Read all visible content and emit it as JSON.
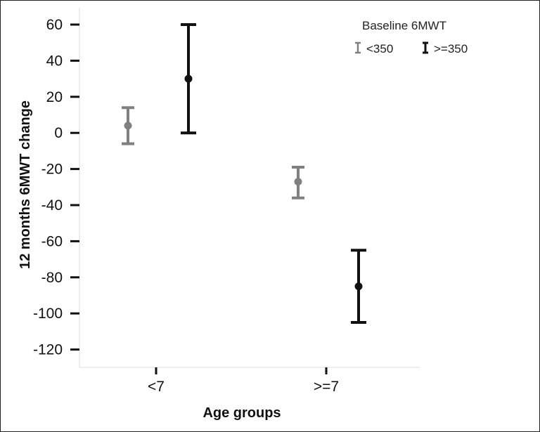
{
  "chart_data": {
    "type": "errorbar",
    "title": "",
    "xlabel": "Age groups",
    "ylabel": "12 months 6MWT change",
    "categories": [
      "<7",
      ">=7"
    ],
    "ylim": [
      -130,
      62
    ],
    "yticks": [
      60,
      40,
      20,
      0,
      -20,
      -40,
      -60,
      -80,
      -100,
      -120
    ],
    "grid": false,
    "legend": {
      "title": "Baseline 6MWT",
      "placement": "top-right"
    },
    "series": [
      {
        "name": "<350",
        "color": "#808080",
        "points": [
          {
            "category": "<7",
            "mean": 4,
            "lower": -6,
            "upper": 14
          },
          {
            "category": ">=7",
            "mean": -27,
            "lower": -36,
            "upper": -19
          }
        ]
      },
      {
        "name": ">=350",
        "color": "#111111",
        "points": [
          {
            "category": "<7",
            "mean": 30,
            "lower": 0,
            "upper": 60
          },
          {
            "category": ">=7",
            "mean": -85,
            "lower": -105,
            "upper": -65
          }
        ]
      }
    ]
  }
}
